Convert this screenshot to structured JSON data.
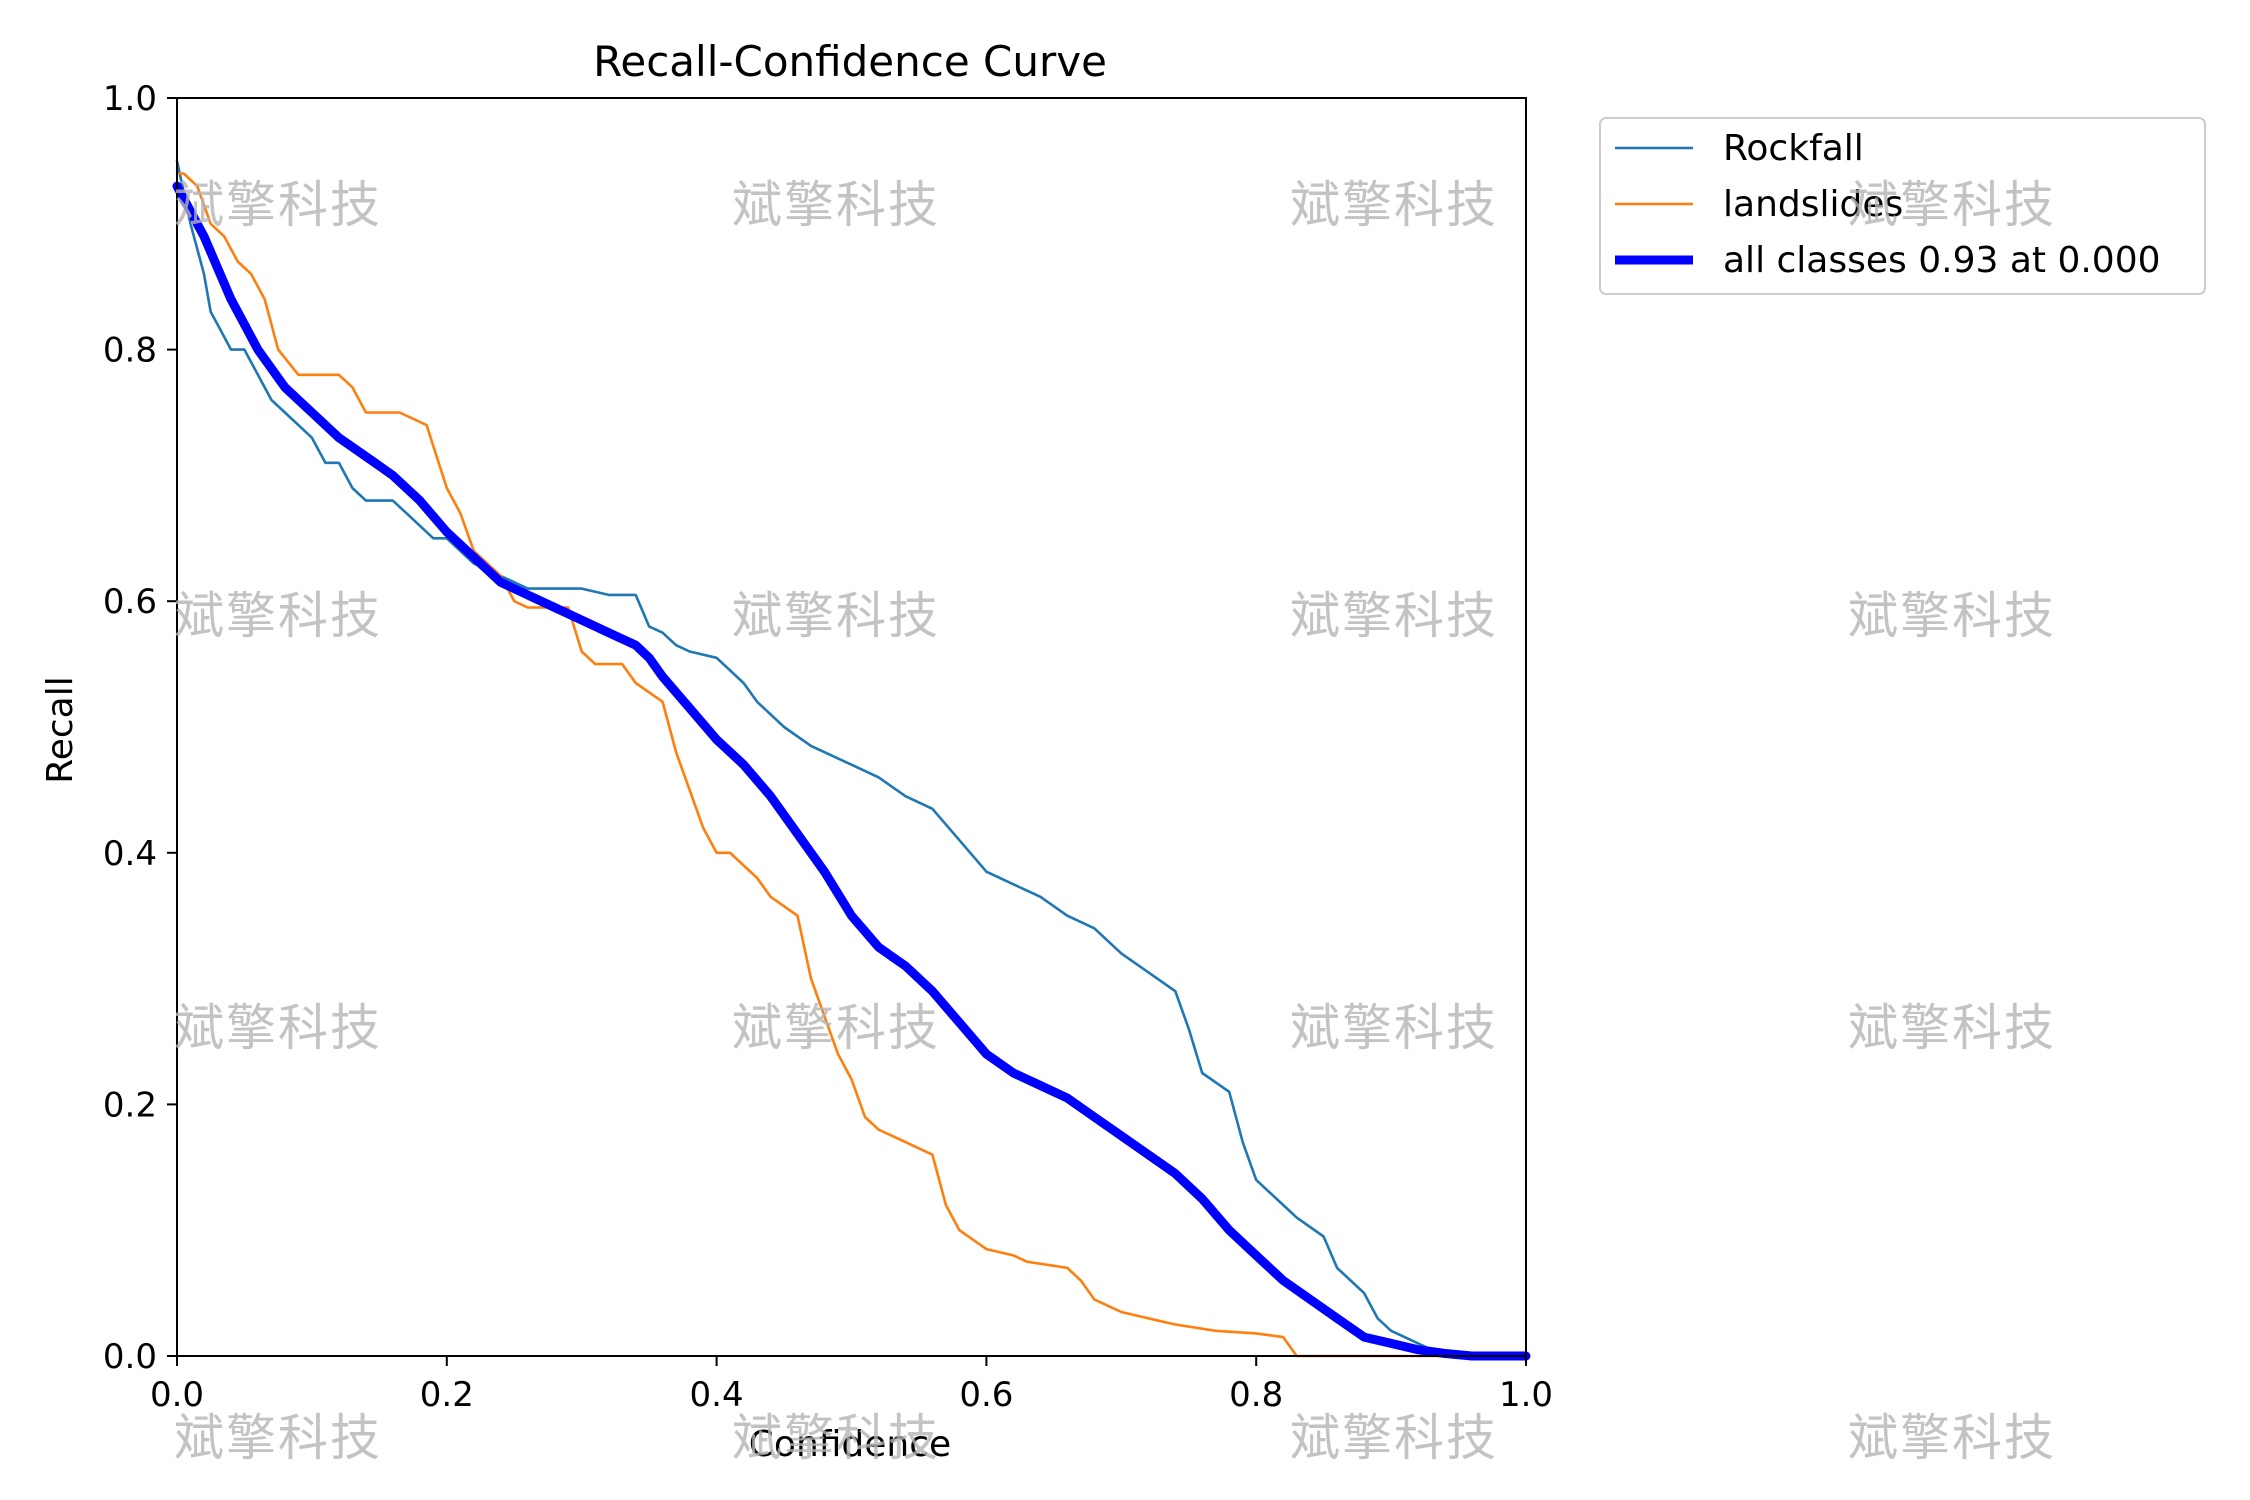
{
  "chart_data": {
    "type": "line",
    "title": "Recall-Confidence Curve",
    "xlabel": "Confidence",
    "ylabel": "Recall",
    "xlim": [
      0,
      1
    ],
    "ylim": [
      0,
      1
    ],
    "xticks": [
      0.0,
      0.2,
      0.4,
      0.6,
      0.8,
      1.0
    ],
    "yticks": [
      0.0,
      0.2,
      0.4,
      0.6,
      0.8,
      1.0
    ],
    "xtick_labels": [
      "0.0",
      "0.2",
      "0.4",
      "0.6",
      "0.8",
      "1.0"
    ],
    "ytick_labels": [
      "0.0",
      "0.2",
      "0.4",
      "0.6",
      "0.8",
      "1.0"
    ],
    "legend_position": "outside-top-right",
    "series": [
      {
        "name": "Rockfall",
        "color": "#1f77b4",
        "width": "thin",
        "x": [
          0.0,
          0.01,
          0.02,
          0.025,
          0.03,
          0.04,
          0.05,
          0.06,
          0.07,
          0.08,
          0.09,
          0.1,
          0.11,
          0.12,
          0.13,
          0.14,
          0.15,
          0.16,
          0.17,
          0.18,
          0.19,
          0.2,
          0.22,
          0.24,
          0.26,
          0.28,
          0.3,
          0.32,
          0.34,
          0.35,
          0.36,
          0.37,
          0.38,
          0.4,
          0.42,
          0.43,
          0.45,
          0.47,
          0.5,
          0.52,
          0.54,
          0.56,
          0.58,
          0.6,
          0.62,
          0.64,
          0.66,
          0.68,
          0.7,
          0.72,
          0.74,
          0.75,
          0.76,
          0.78,
          0.79,
          0.8,
          0.81,
          0.82,
          0.83,
          0.85,
          0.86,
          0.87,
          0.88,
          0.89,
          0.9,
          0.91,
          0.92,
          0.93,
          0.94,
          0.96,
          1.0
        ],
        "y": [
          0.95,
          0.9,
          0.86,
          0.83,
          0.82,
          0.8,
          0.8,
          0.78,
          0.76,
          0.75,
          0.74,
          0.73,
          0.71,
          0.71,
          0.69,
          0.68,
          0.68,
          0.68,
          0.67,
          0.66,
          0.65,
          0.65,
          0.63,
          0.62,
          0.61,
          0.61,
          0.61,
          0.605,
          0.605,
          0.58,
          0.575,
          0.565,
          0.56,
          0.555,
          0.535,
          0.52,
          0.5,
          0.485,
          0.47,
          0.46,
          0.445,
          0.435,
          0.41,
          0.385,
          0.375,
          0.365,
          0.35,
          0.34,
          0.32,
          0.305,
          0.29,
          0.26,
          0.225,
          0.21,
          0.17,
          0.14,
          0.13,
          0.12,
          0.11,
          0.095,
          0.07,
          0.06,
          0.05,
          0.03,
          0.02,
          0.015,
          0.01,
          0.005,
          0.0,
          0.0,
          0.0
        ]
      },
      {
        "name": "landslides",
        "color": "#ff7f0e",
        "width": "thin",
        "x": [
          0.0,
          0.005,
          0.015,
          0.025,
          0.035,
          0.045,
          0.055,
          0.065,
          0.075,
          0.09,
          0.12,
          0.13,
          0.14,
          0.165,
          0.185,
          0.2,
          0.21,
          0.22,
          0.24,
          0.25,
          0.26,
          0.29,
          0.3,
          0.31,
          0.33,
          0.34,
          0.36,
          0.37,
          0.38,
          0.39,
          0.4,
          0.41,
          0.43,
          0.44,
          0.46,
          0.47,
          0.48,
          0.49,
          0.5,
          0.51,
          0.52,
          0.53,
          0.54,
          0.56,
          0.57,
          0.58,
          0.6,
          0.62,
          0.63,
          0.66,
          0.67,
          0.68,
          0.7,
          0.72,
          0.74,
          0.77,
          0.8,
          0.82,
          0.83,
          0.9,
          1.0
        ],
        "y": [
          0.94,
          0.94,
          0.93,
          0.9,
          0.89,
          0.87,
          0.86,
          0.84,
          0.8,
          0.78,
          0.78,
          0.77,
          0.75,
          0.75,
          0.74,
          0.69,
          0.67,
          0.64,
          0.62,
          0.6,
          0.595,
          0.595,
          0.56,
          0.55,
          0.55,
          0.535,
          0.52,
          0.48,
          0.45,
          0.42,
          0.4,
          0.4,
          0.38,
          0.365,
          0.35,
          0.3,
          0.27,
          0.24,
          0.22,
          0.19,
          0.18,
          0.175,
          0.17,
          0.16,
          0.12,
          0.1,
          0.085,
          0.08,
          0.075,
          0.07,
          0.06,
          0.045,
          0.035,
          0.03,
          0.025,
          0.02,
          0.018,
          0.015,
          0.0,
          0.0,
          0.0
        ]
      },
      {
        "name": "all classes 0.93 at 0.000",
        "color": "#0000ff",
        "width": "thick",
        "x": [
          0.0,
          0.02,
          0.04,
          0.06,
          0.08,
          0.1,
          0.12,
          0.14,
          0.16,
          0.18,
          0.2,
          0.22,
          0.24,
          0.26,
          0.28,
          0.3,
          0.32,
          0.34,
          0.35,
          0.36,
          0.38,
          0.4,
          0.42,
          0.44,
          0.46,
          0.48,
          0.5,
          0.52,
          0.54,
          0.56,
          0.58,
          0.6,
          0.62,
          0.64,
          0.66,
          0.68,
          0.7,
          0.72,
          0.74,
          0.76,
          0.78,
          0.8,
          0.82,
          0.84,
          0.86,
          0.88,
          0.9,
          0.92,
          0.94,
          0.96,
          1.0
        ],
        "y": [
          0.93,
          0.89,
          0.84,
          0.8,
          0.77,
          0.75,
          0.73,
          0.715,
          0.7,
          0.68,
          0.655,
          0.635,
          0.615,
          0.605,
          0.595,
          0.585,
          0.575,
          0.565,
          0.555,
          0.54,
          0.515,
          0.49,
          0.47,
          0.445,
          0.415,
          0.385,
          0.35,
          0.325,
          0.31,
          0.29,
          0.265,
          0.24,
          0.225,
          0.215,
          0.205,
          0.19,
          0.175,
          0.16,
          0.145,
          0.125,
          0.1,
          0.08,
          0.06,
          0.045,
          0.03,
          0.015,
          0.01,
          0.005,
          0.002,
          0.0,
          0.0
        ]
      }
    ]
  },
  "watermark": {
    "text": "斌擎科技"
  }
}
